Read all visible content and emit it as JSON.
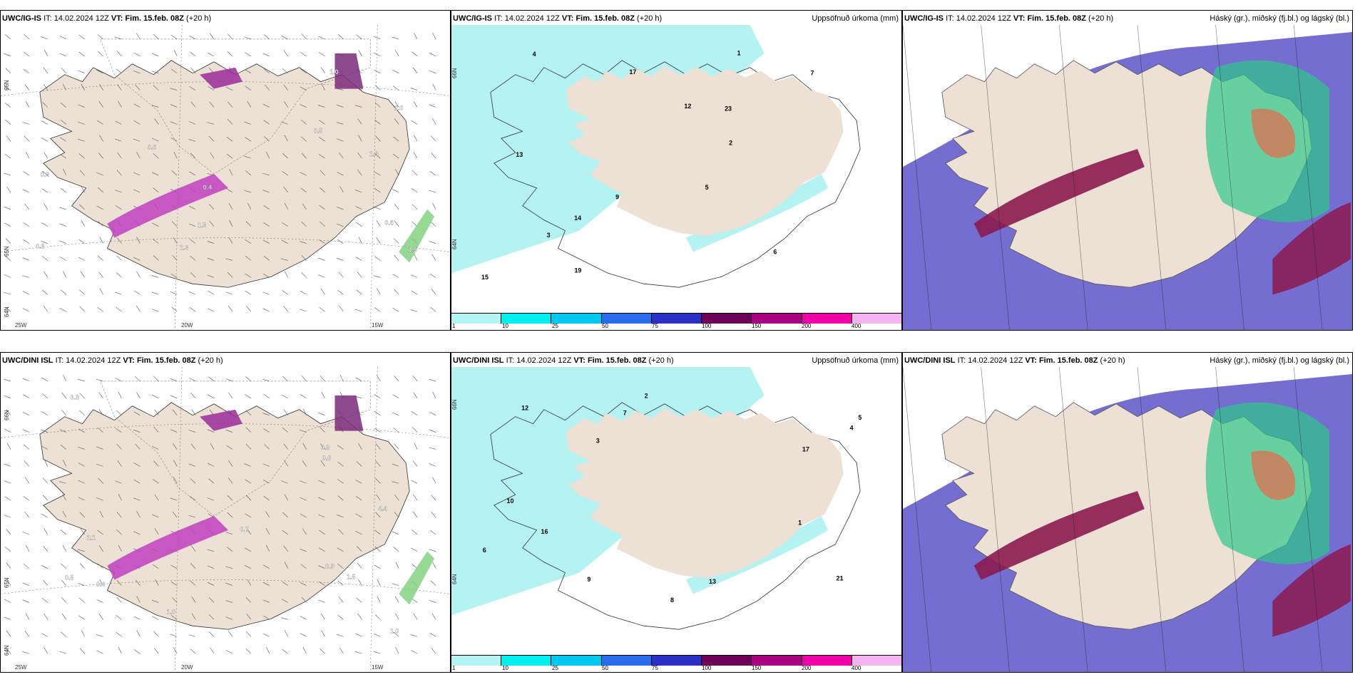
{
  "panels": [
    {
      "model": "UWC/IG-IS",
      "it_label": "IT:",
      "it_value": "14.02.2024 12Z",
      "vt_label": "VT:",
      "vt_value": "Fim. 15.feb. 08Z",
      "lead": "(+20 h)",
      "right_title": "",
      "kind": "wind",
      "lat_labels": [
        "66N",
        "65N",
        "64N"
      ],
      "lon_labels": [
        "25W",
        "20W",
        "15W"
      ],
      "values": [
        "0.5",
        "0.3",
        "0.4",
        "0.8",
        "1.3",
        "1.0",
        "1.5",
        "2.0",
        "0.6",
        "0.6",
        "1.3",
        "2.3"
      ]
    },
    {
      "model": "UWC/IG-IS",
      "it_label": "IT:",
      "it_value": "14.02.2024 12Z",
      "vt_label": "VT:",
      "vt_value": "Fim. 15.feb. 08Z",
      "lead": "(+20 h)",
      "right_title": "Uppsöfnuð úrkoma (mm)",
      "kind": "precip",
      "lat_labels": [
        "66N",
        "64N"
      ],
      "values": [
        "3",
        "5",
        "9",
        "13",
        "17",
        "12",
        "15",
        "23",
        "19",
        "14",
        "2",
        "7",
        "4",
        "6",
        "1"
      ]
    },
    {
      "model": "UWC/IG-IS",
      "it_label": "IT:",
      "it_value": "14.02.2024 12Z",
      "vt_label": "VT:",
      "vt_value": "Fim. 15.feb. 08Z",
      "lead": "(+20 h)",
      "right_title": "Háský (gr.), miðský (fj.bl.) og lágský (bl.)",
      "kind": "cloud",
      "lat_labels": [],
      "values": []
    },
    {
      "model": "UWC/DINI ISL",
      "it_label": "IT:",
      "it_value": "14.02.2024 12Z",
      "vt_label": "VT:",
      "vt_value": "Fim. 15.feb. 08Z",
      "lead": "(+20 h)",
      "right_title": "",
      "kind": "wind",
      "lat_labels": [
        "66N",
        "65N",
        "64N"
      ],
      "lon_labels": [
        "25W",
        "20W",
        "15W"
      ],
      "values": [
        "0.3",
        "0.4",
        "0.9",
        "1.0",
        "0.6",
        "1.5",
        "1.0",
        "0.5",
        "0.8",
        "2.1",
        "0.7",
        "4.4"
      ]
    },
    {
      "model": "UWC/DINI ISL",
      "it_label": "IT:",
      "it_value": "14.02.2024 12Z",
      "vt_label": "VT:",
      "vt_value": "Fim. 15.feb. 08Z",
      "lead": "(+20 h)",
      "right_title": "Uppsöfnuð úrkoma (mm)",
      "kind": "precip",
      "lat_labels": [
        "66N",
        "64N"
      ],
      "values": [
        "7",
        "2",
        "13",
        "21",
        "10",
        "16",
        "12",
        "17",
        "4",
        "3",
        "6",
        "9",
        "1",
        "5",
        "8"
      ]
    },
    {
      "model": "UWC/DINI ISL",
      "it_label": "IT:",
      "it_value": "14.02.2024 12Z",
      "vt_label": "VT:",
      "vt_value": "Fim. 15.feb. 08Z",
      "lead": "(+20 h)",
      "right_title": "Háský (gr.), miðský (fj.bl.) og lágský (bl.)",
      "kind": "cloud",
      "lat_labels": [],
      "values": []
    }
  ],
  "legend": {
    "ticks": [
      "1",
      "10",
      "25",
      "50",
      "75",
      "100",
      "150",
      "200",
      "400"
    ],
    "colors": [
      "#b3f5f5",
      "#00f0f0",
      "#00c8f0",
      "#2a6cf0",
      "#2b2fc8",
      "#6e005a",
      "#a8007e",
      "#f000a8",
      "#f5b4f0"
    ]
  },
  "colors": {
    "land": "#ede0d4",
    "precip_light": "#b5f3f3",
    "cloud_low": "#5a55c8",
    "cloud_mid": "#8b1a50",
    "cloud_high": "#2ec88a"
  }
}
